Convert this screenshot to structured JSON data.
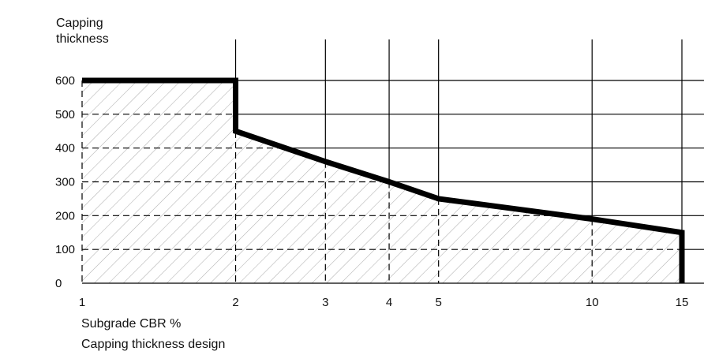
{
  "chart_data": {
    "type": "area",
    "ylabel_lines": [
      "Capping",
      "thickness"
    ],
    "xlabel": "Subgrade CBR %",
    "caption": "Capping thickness design",
    "x_scale": "log",
    "xlim": [
      1,
      15
    ],
    "ylim": [
      0,
      600
    ],
    "x_ticks": [
      1,
      2,
      3,
      4,
      5,
      10,
      15
    ],
    "y_ticks": [
      0,
      100,
      200,
      300,
      400,
      500,
      600
    ],
    "grid": true,
    "fill_pattern": "diagonal-hatch",
    "series": [
      {
        "points": [
          {
            "x": 1,
            "y": 600
          },
          {
            "x": 2,
            "y": 600
          },
          {
            "x": 2,
            "y": 450
          },
          {
            "x": 3,
            "y": 360
          },
          {
            "x": 4,
            "y": 300
          },
          {
            "x": 5,
            "y": 250
          },
          {
            "x": 10,
            "y": 190
          },
          {
            "x": 15,
            "y": 150
          },
          {
            "x": 15,
            "y": 0
          }
        ]
      }
    ],
    "colors": {
      "line": "#000000",
      "grid": "#000000",
      "hatch": "#b0b0b0"
    }
  }
}
